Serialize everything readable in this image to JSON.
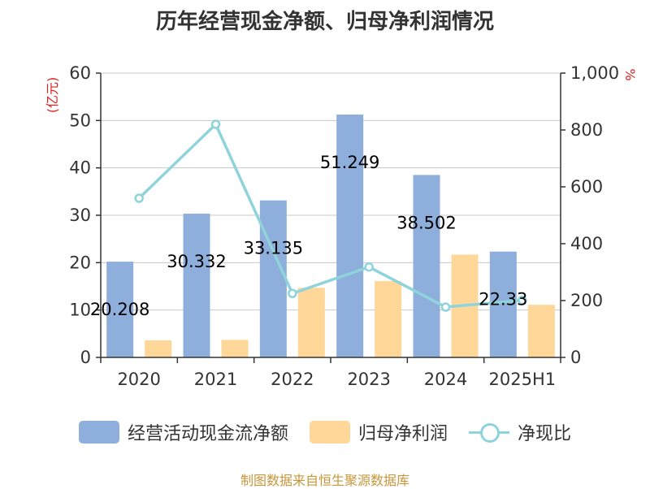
{
  "title": "历年经营现金净额、归母净利润情况",
  "source": "制图数据来自恒生聚源数据库",
  "chart_data": {
    "type": "bar",
    "title": "历年经营现金净额、归母净利润情况",
    "categories": [
      "2020",
      "2021",
      "2022",
      "2023",
      "2024",
      "2025H1"
    ],
    "series": [
      {
        "name": "经营活动现金流净额",
        "kind": "bar",
        "axis": "left",
        "color": "#8eaedb",
        "values": [
          20.208,
          30.332,
          33.135,
          51.249,
          38.502,
          22.33
        ]
      },
      {
        "name": "归母净利润",
        "kind": "bar",
        "axis": "left",
        "color": "#ffd899",
        "values": [
          3.6,
          3.7,
          14.7,
          16.1,
          21.7,
          11.1
        ]
      },
      {
        "name": "净现比",
        "kind": "line",
        "axis": "right",
        "color": "#8fd3db",
        "values": [
          560,
          820,
          225,
          318,
          177,
          201
        ]
      }
    ],
    "data_labels": [
      "20.208",
      "30.332",
      "33.135",
      "51.249",
      "38.502",
      "22.33"
    ],
    "y_left": {
      "label": "(亿元)",
      "ylim": [
        0,
        60
      ],
      "ticks": [
        "0",
        "10",
        "20",
        "30",
        "40",
        "50",
        "60"
      ]
    },
    "y_right": {
      "label": "%",
      "ylim": [
        0,
        1000
      ],
      "ticks": [
        "0",
        "200",
        "400",
        "600",
        "800",
        "1,000"
      ]
    },
    "grid": true,
    "legend_position": "bottom"
  }
}
